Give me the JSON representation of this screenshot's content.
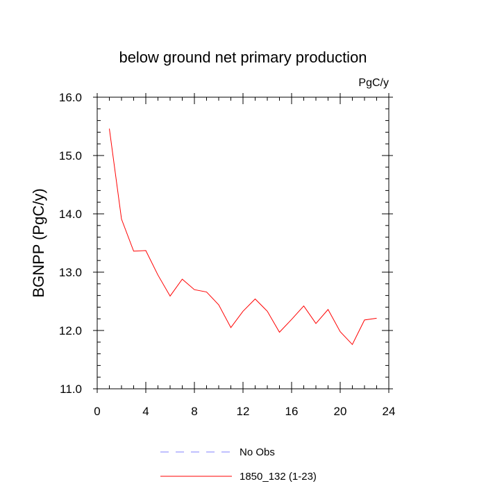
{
  "chart_data": {
    "type": "line",
    "title": "below ground net primary production",
    "units_label": "PgC/y",
    "ylabel": "BGNPP  (PgC/y)",
    "xlabel": "",
    "xlim": [
      0,
      24
    ],
    "ylim": [
      11.0,
      16.0
    ],
    "x_ticks": [
      0,
      4,
      8,
      12,
      16,
      20,
      24
    ],
    "x_tick_labels": [
      "0",
      "4",
      "8",
      "12",
      "16",
      "20",
      "24"
    ],
    "y_ticks": [
      11.0,
      12.0,
      13.0,
      14.0,
      15.0,
      16.0
    ],
    "y_tick_labels": [
      "11.0",
      "12.0",
      "13.0",
      "14.0",
      "15.0",
      "16.0"
    ],
    "grid": false,
    "legend_position": "bottom",
    "series": [
      {
        "name": "1850_132 (1-23)",
        "color": "#ff0000",
        "style": "solid",
        "x": [
          1,
          2,
          3,
          4,
          5,
          6,
          7,
          8,
          9,
          10,
          11,
          12,
          13,
          14,
          15,
          16,
          17,
          18,
          19,
          20,
          21,
          22,
          23
        ],
        "y": [
          15.46,
          13.91,
          13.36,
          13.37,
          12.95,
          12.59,
          12.88,
          12.7,
          12.66,
          12.44,
          12.05,
          12.33,
          12.54,
          12.33,
          11.97,
          12.19,
          12.42,
          12.12,
          12.36,
          11.98,
          11.76,
          12.18,
          12.21
        ]
      }
    ],
    "legend": [
      {
        "label": "No Obs",
        "color": "#8080ff",
        "style": "dashed"
      },
      {
        "label": "1850_132 (1-23)",
        "color": "#ff0000",
        "style": "solid"
      }
    ]
  }
}
